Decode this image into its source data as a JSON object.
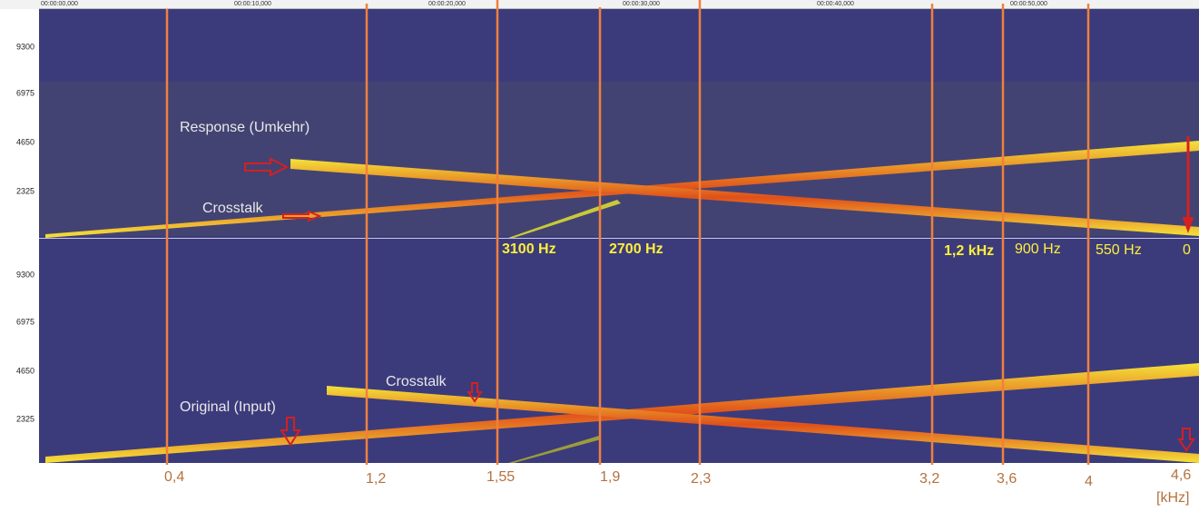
{
  "time_ruler": [
    "00:00:00,000",
    "00:00:10,000",
    "00:00:20,000",
    "00:00:30,000",
    "00:00:40,000",
    "00:00:50,000"
  ],
  "upper_panel": {
    "y_ticks": [
      "9300",
      "6975",
      "4650",
      "2325"
    ],
    "annotations": [
      "Response (Umkehr)",
      "Crosstalk"
    ],
    "frequency_labels": [
      "3100 Hz",
      "2700 Hz",
      "1,2 kHz",
      "900 Hz",
      "550 Hz",
      "0"
    ]
  },
  "lower_panel": {
    "y_ticks": [
      "9300",
      "6975",
      "4650",
      "2325"
    ],
    "annotations": [
      "Original (Input)",
      "Crosstalk"
    ]
  },
  "x_axis": {
    "labels": [
      "0,4",
      "1,2",
      "1,55",
      "1,9",
      "2,3",
      "3,2",
      "3,6",
      "4",
      "4,6"
    ],
    "unit": "[kHz]"
  }
}
